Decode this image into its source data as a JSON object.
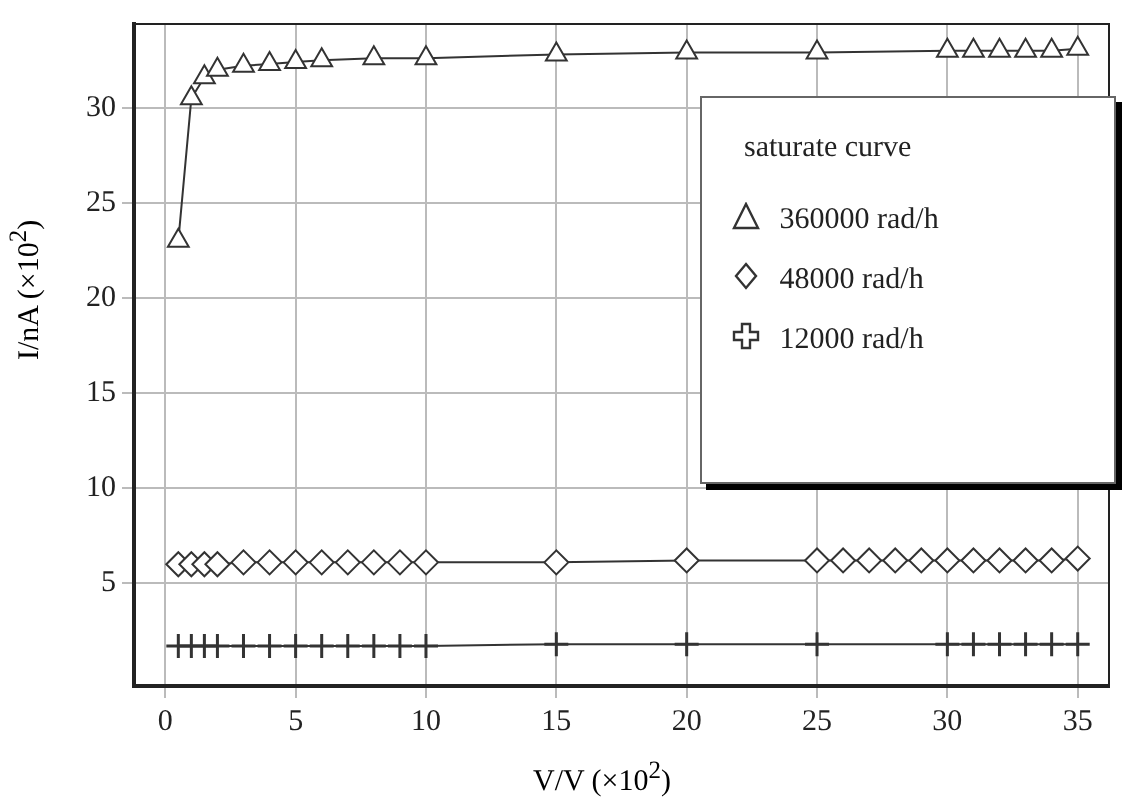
{
  "chart_data": {
    "type": "line",
    "xlabel": "V/V (×10$^{2}$)",
    "ylabel": "I/nA (×10$^{2}$)",
    "legend_title": "saturate curve",
    "xlim": [
      -1.2,
      36.2
    ],
    "xticks": [
      0,
      5,
      10,
      15,
      20,
      25,
      30,
      35
    ],
    "ylim": [
      -0.4,
      34.4
    ],
    "yticks": [
      5,
      10,
      15,
      20,
      25,
      30
    ],
    "grid": true,
    "legend": "right",
    "line_style": "solid",
    "series": [
      {
        "name": "360000 rad/h",
        "color": "#333333",
        "marker": "triangle",
        "x": [
          0.5,
          1,
          1.5,
          2,
          3,
          4,
          5,
          6,
          8,
          10,
          15,
          20,
          25,
          30,
          31,
          32,
          33,
          34,
          35
        ],
        "values": [
          23,
          30.5,
          31.6,
          32,
          32.2,
          32.3,
          32.4,
          32.5,
          32.6,
          32.6,
          32.8,
          32.9,
          32.9,
          33,
          33,
          33,
          33,
          33,
          33.1
        ]
      },
      {
        "name": "48000 rad/h",
        "color": "#333333",
        "marker": "diamond",
        "x": [
          0.5,
          1,
          1.5,
          2,
          3,
          4,
          5,
          6,
          7,
          8,
          9,
          10,
          15,
          20,
          25,
          26,
          27,
          28,
          29,
          30,
          31,
          32,
          33,
          34,
          35
        ],
        "values": [
          6,
          6,
          6,
          6,
          6.1,
          6.1,
          6.1,
          6.1,
          6.1,
          6.1,
          6.1,
          6.1,
          6.1,
          6.2,
          6.2,
          6.2,
          6.2,
          6.2,
          6.2,
          6.2,
          6.2,
          6.2,
          6.2,
          6.2,
          6.3
        ]
      },
      {
        "name": "12000 rad/h",
        "color": "#333333",
        "marker": "cross",
        "x": [
          0.5,
          1,
          1.5,
          2,
          3,
          4,
          5,
          6,
          7,
          8,
          9,
          10,
          15,
          20,
          25,
          30,
          31,
          32,
          33,
          34,
          35
        ],
        "values": [
          1.7,
          1.7,
          1.7,
          1.7,
          1.7,
          1.7,
          1.7,
          1.7,
          1.7,
          1.7,
          1.7,
          1.7,
          1.8,
          1.8,
          1.8,
          1.8,
          1.8,
          1.8,
          1.8,
          1.8,
          1.8
        ]
      }
    ]
  }
}
